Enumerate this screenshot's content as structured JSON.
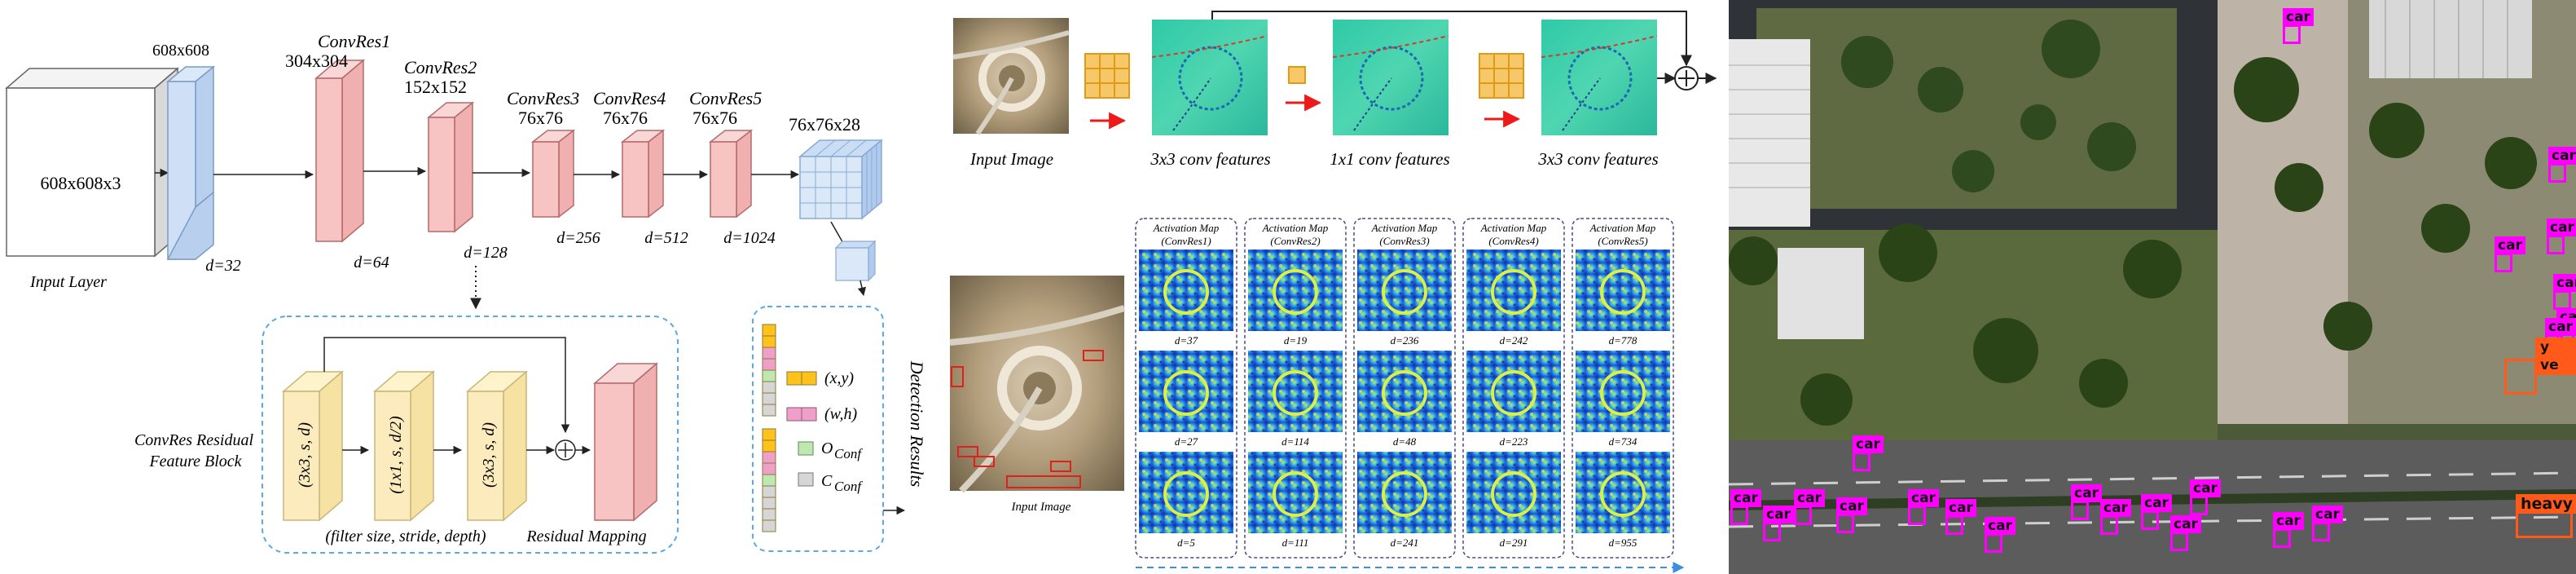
{
  "architecture": {
    "input_layer": {
      "size": "608x608x3",
      "caption": "Input Layer"
    },
    "blue_block": {
      "size": "608x608",
      "depth": "d=32"
    },
    "convres1": {
      "name": "ConvRes1",
      "size": "304x304",
      "depth": "d=64"
    },
    "convres2": {
      "name": "ConvRes2",
      "size": "152x152",
      "depth": "d=128"
    },
    "convres3": {
      "name": "ConvRes3",
      "size": "76x76",
      "depth": "d=256"
    },
    "convres4": {
      "name": "ConvRes4",
      "size": "76x76",
      "depth": "d=512"
    },
    "convres5": {
      "name": "ConvRes5",
      "size": "76x76",
      "depth": "d=1024"
    },
    "output_grid": {
      "size": "76x76x28"
    }
  },
  "residual_block": {
    "title_line1": "ConvRes Residual",
    "title_line2": "Feature Block",
    "layer1": "(3x3, s, d)",
    "layer2": "(1x1, s, d/2)",
    "layer3": "(3x3, s, d)",
    "legend": "(filter size, stride, depth)",
    "mapping": "Residual Mapping"
  },
  "detection": {
    "title": "Detection Results",
    "xy": "(x,y)",
    "wh": "(w,h)",
    "o_conf_main": "O",
    "o_conf_sub": "Conf",
    "c_conf_main": "C",
    "c_conf_sub": "Conf"
  },
  "feature_strip": {
    "input_label": "Input Image",
    "stage1": "3x3 conv features",
    "stage2": "1x1 conv features",
    "stage3": "3x3 conv features"
  },
  "activation": {
    "input_label": "Input Image",
    "columns": [
      {
        "title_line1": "Activation Map",
        "title_line2": "(ConvRes1)",
        "depths": [
          "d=37",
          "d=27",
          "d=5"
        ]
      },
      {
        "title_line1": "Activation Map",
        "title_line2": "(ConvRes2)",
        "depths": [
          "d=19",
          "d=114",
          "d=111"
        ]
      },
      {
        "title_line1": "Activation Map",
        "title_line2": "(ConvRes3)",
        "depths": [
          "d=236",
          "d=48",
          "d=241"
        ]
      },
      {
        "title_line1": "Activation Map",
        "title_line2": "(ConvRes4)",
        "depths": [
          "d=242",
          "d=223",
          "d=291"
        ]
      },
      {
        "title_line1": "Activation Map",
        "title_line2": "(ConvRes5)",
        "depths": [
          "d=778",
          "d=734",
          "d=955"
        ]
      }
    ]
  },
  "detections": {
    "car_label": "car",
    "heavy_label": "heavy",
    "partial_vehicle_label": "y ve",
    "colors": {
      "car": "#ff00ff",
      "heavy": "#ff5a1a"
    }
  }
}
